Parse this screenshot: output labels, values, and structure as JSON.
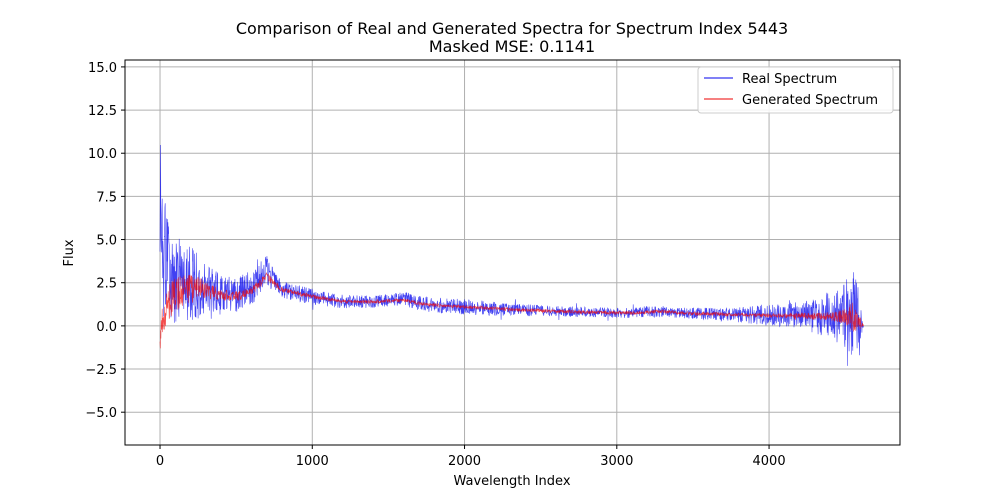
{
  "chart_data": {
    "type": "line",
    "title": "Comparison of Real and Generated Spectra for Spectrum Index 5443",
    "subtitle": "Masked MSE: 0.1141",
    "xlabel": "Wavelength Index",
    "ylabel": "Flux",
    "xlim": [
      -230,
      4860
    ],
    "ylim": [
      -6.9,
      15.4
    ],
    "xticks": [
      0,
      1000,
      2000,
      3000,
      4000
    ],
    "xtick_labels": [
      "0",
      "1000",
      "2000",
      "3000",
      "4000"
    ],
    "yticks": [
      -5.0,
      -2.5,
      0.0,
      2.5,
      5.0,
      7.5,
      10.0,
      12.5,
      15.0
    ],
    "ytick_labels": [
      "−5.0",
      "−2.5",
      "0.0",
      "2.5",
      "5.0",
      "7.5",
      "10.0",
      "12.5",
      "15.0"
    ],
    "grid": true,
    "legend_position": "top-right",
    "series": [
      {
        "name": "Real Spectrum",
        "color": "#0000ee",
        "x": [
          0,
          20,
          50,
          100,
          150,
          200,
          250,
          300,
          400,
          500,
          600,
          650,
          700,
          750,
          800,
          900,
          1000,
          1200,
          1400,
          1600,
          1700,
          1800,
          2000,
          2200,
          2400,
          2600,
          2800,
          3000,
          3100,
          3200,
          3300,
          3400,
          3600,
          3800,
          4000,
          4200,
          4400,
          4500,
          4550,
          4600,
          4620
        ],
        "values": [
          6.0,
          4.0,
          3.0,
          2.6,
          2.3,
          2.4,
          2.3,
          2.1,
          1.9,
          1.8,
          2.2,
          2.6,
          3.2,
          2.6,
          2.1,
          1.9,
          1.7,
          1.4,
          1.4,
          1.6,
          1.3,
          1.2,
          1.1,
          1.0,
          0.9,
          0.85,
          0.8,
          0.75,
          0.75,
          0.8,
          0.85,
          0.75,
          0.7,
          0.65,
          0.6,
          0.6,
          0.6,
          0.65,
          0.7,
          0.3,
          0.0
        ],
        "noise": [
          5.5,
          4.5,
          3.5,
          2.6,
          2.6,
          2.3,
          1.9,
          1.6,
          1.0,
          1.0,
          1.0,
          1.0,
          0.9,
          0.6,
          0.5,
          0.5,
          0.45,
          0.4,
          0.35,
          0.4,
          0.45,
          0.45,
          0.45,
          0.4,
          0.35,
          0.3,
          0.3,
          0.3,
          0.3,
          0.35,
          0.3,
          0.3,
          0.35,
          0.45,
          0.6,
          0.8,
          1.4,
          1.9,
          2.6,
          1.6,
          0.2
        ]
      },
      {
        "name": "Generated Spectrum",
        "color": "#ee0000",
        "x": [
          0,
          20,
          50,
          100,
          150,
          200,
          250,
          300,
          400,
          500,
          600,
          650,
          700,
          750,
          800,
          900,
          1000,
          1200,
          1400,
          1600,
          1700,
          1800,
          2000,
          2200,
          2400,
          2600,
          2800,
          3000,
          3100,
          3200,
          3300,
          3400,
          3600,
          3800,
          4000,
          4200,
          4400,
          4500,
          4550,
          4600,
          4620
        ],
        "values": [
          -0.7,
          0.5,
          1.3,
          1.8,
          2.0,
          2.1,
          2.2,
          2.1,
          1.8,
          1.7,
          2.0,
          2.4,
          2.9,
          2.5,
          2.1,
          1.9,
          1.7,
          1.4,
          1.4,
          1.5,
          1.3,
          1.2,
          1.1,
          1.0,
          0.9,
          0.85,
          0.8,
          0.75,
          0.75,
          0.8,
          0.85,
          0.75,
          0.7,
          0.65,
          0.6,
          0.6,
          0.55,
          0.55,
          0.5,
          0.2,
          0.0
        ],
        "noise": [
          0.9,
          1.0,
          1.0,
          1.1,
          1.0,
          0.9,
          0.7,
          0.5,
          0.35,
          0.3,
          0.25,
          0.25,
          0.25,
          0.2,
          0.15,
          0.12,
          0.12,
          0.1,
          0.1,
          0.1,
          0.1,
          0.1,
          0.1,
          0.1,
          0.1,
          0.1,
          0.1,
          0.1,
          0.1,
          0.1,
          0.1,
          0.1,
          0.1,
          0.1,
          0.12,
          0.15,
          0.25,
          0.45,
          0.9,
          0.4,
          0.05
        ]
      }
    ]
  }
}
